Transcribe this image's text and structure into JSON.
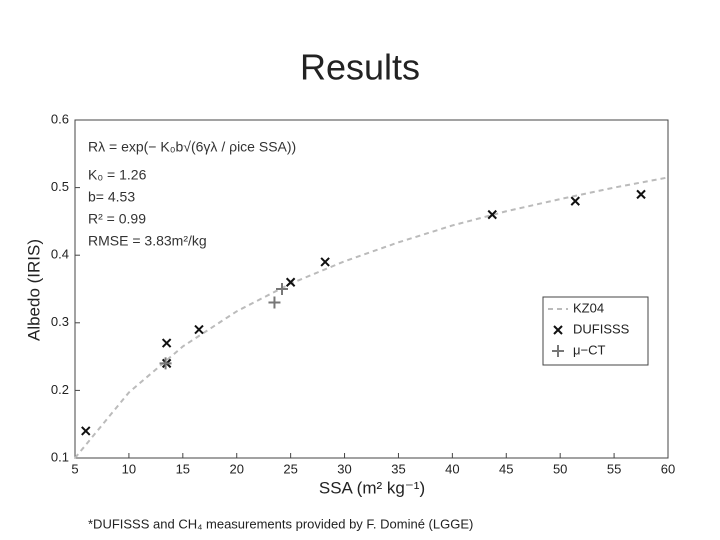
{
  "title": "Results",
  "footnote": "*DUFISSS and CH₄ measurements provided by F. Dominé (LGGE)",
  "chart_data": {
    "type": "scatter",
    "xlabel": "SSA (m² kg⁻¹)",
    "ylabel": "Albedo (IRIS)",
    "annotations": [
      "Rλ = exp(− K₀b√(6γλ / ρice SSA))",
      "K₀ = 1.26",
      "b= 4.53",
      "R² = 0.99",
      "RMSE = 3.83m²/kg"
    ],
    "xlim": [
      5,
      60
    ],
    "xticks": [
      5,
      10,
      15,
      20,
      25,
      30,
      35,
      40,
      45,
      50,
      55,
      60
    ],
    "ylim": [
      0.1,
      0.6
    ],
    "yticks": [
      0.1,
      0.2,
      0.3,
      0.4,
      0.5,
      0.6
    ],
    "legend": "right",
    "series": [
      {
        "name": "KZ04",
        "color": "#bbbbbb",
        "marker": "line",
        "x": [
          5,
          10,
          15,
          20,
          25,
          30,
          35,
          40,
          45,
          50,
          55,
          60
        ],
        "values": [
          0.1,
          0.197,
          0.265,
          0.317,
          0.358,
          0.391,
          0.419,
          0.444,
          0.465,
          0.483,
          0.5,
          0.515
        ]
      },
      {
        "name": "DUFISSS",
        "color": "#111111",
        "marker": "x",
        "x": [
          6,
          13.5,
          13.5,
          16.5,
          25,
          28.2,
          43.7,
          51.4,
          57.5
        ],
        "values": [
          0.14,
          0.27,
          0.24,
          0.29,
          0.36,
          0.39,
          0.46,
          0.48,
          0.49
        ]
      },
      {
        "name": "μ−CT",
        "color": "#777777",
        "marker": "plus",
        "x": [
          13.4,
          23.5,
          24.2
        ],
        "values": [
          0.24,
          0.33,
          0.35
        ]
      }
    ]
  }
}
